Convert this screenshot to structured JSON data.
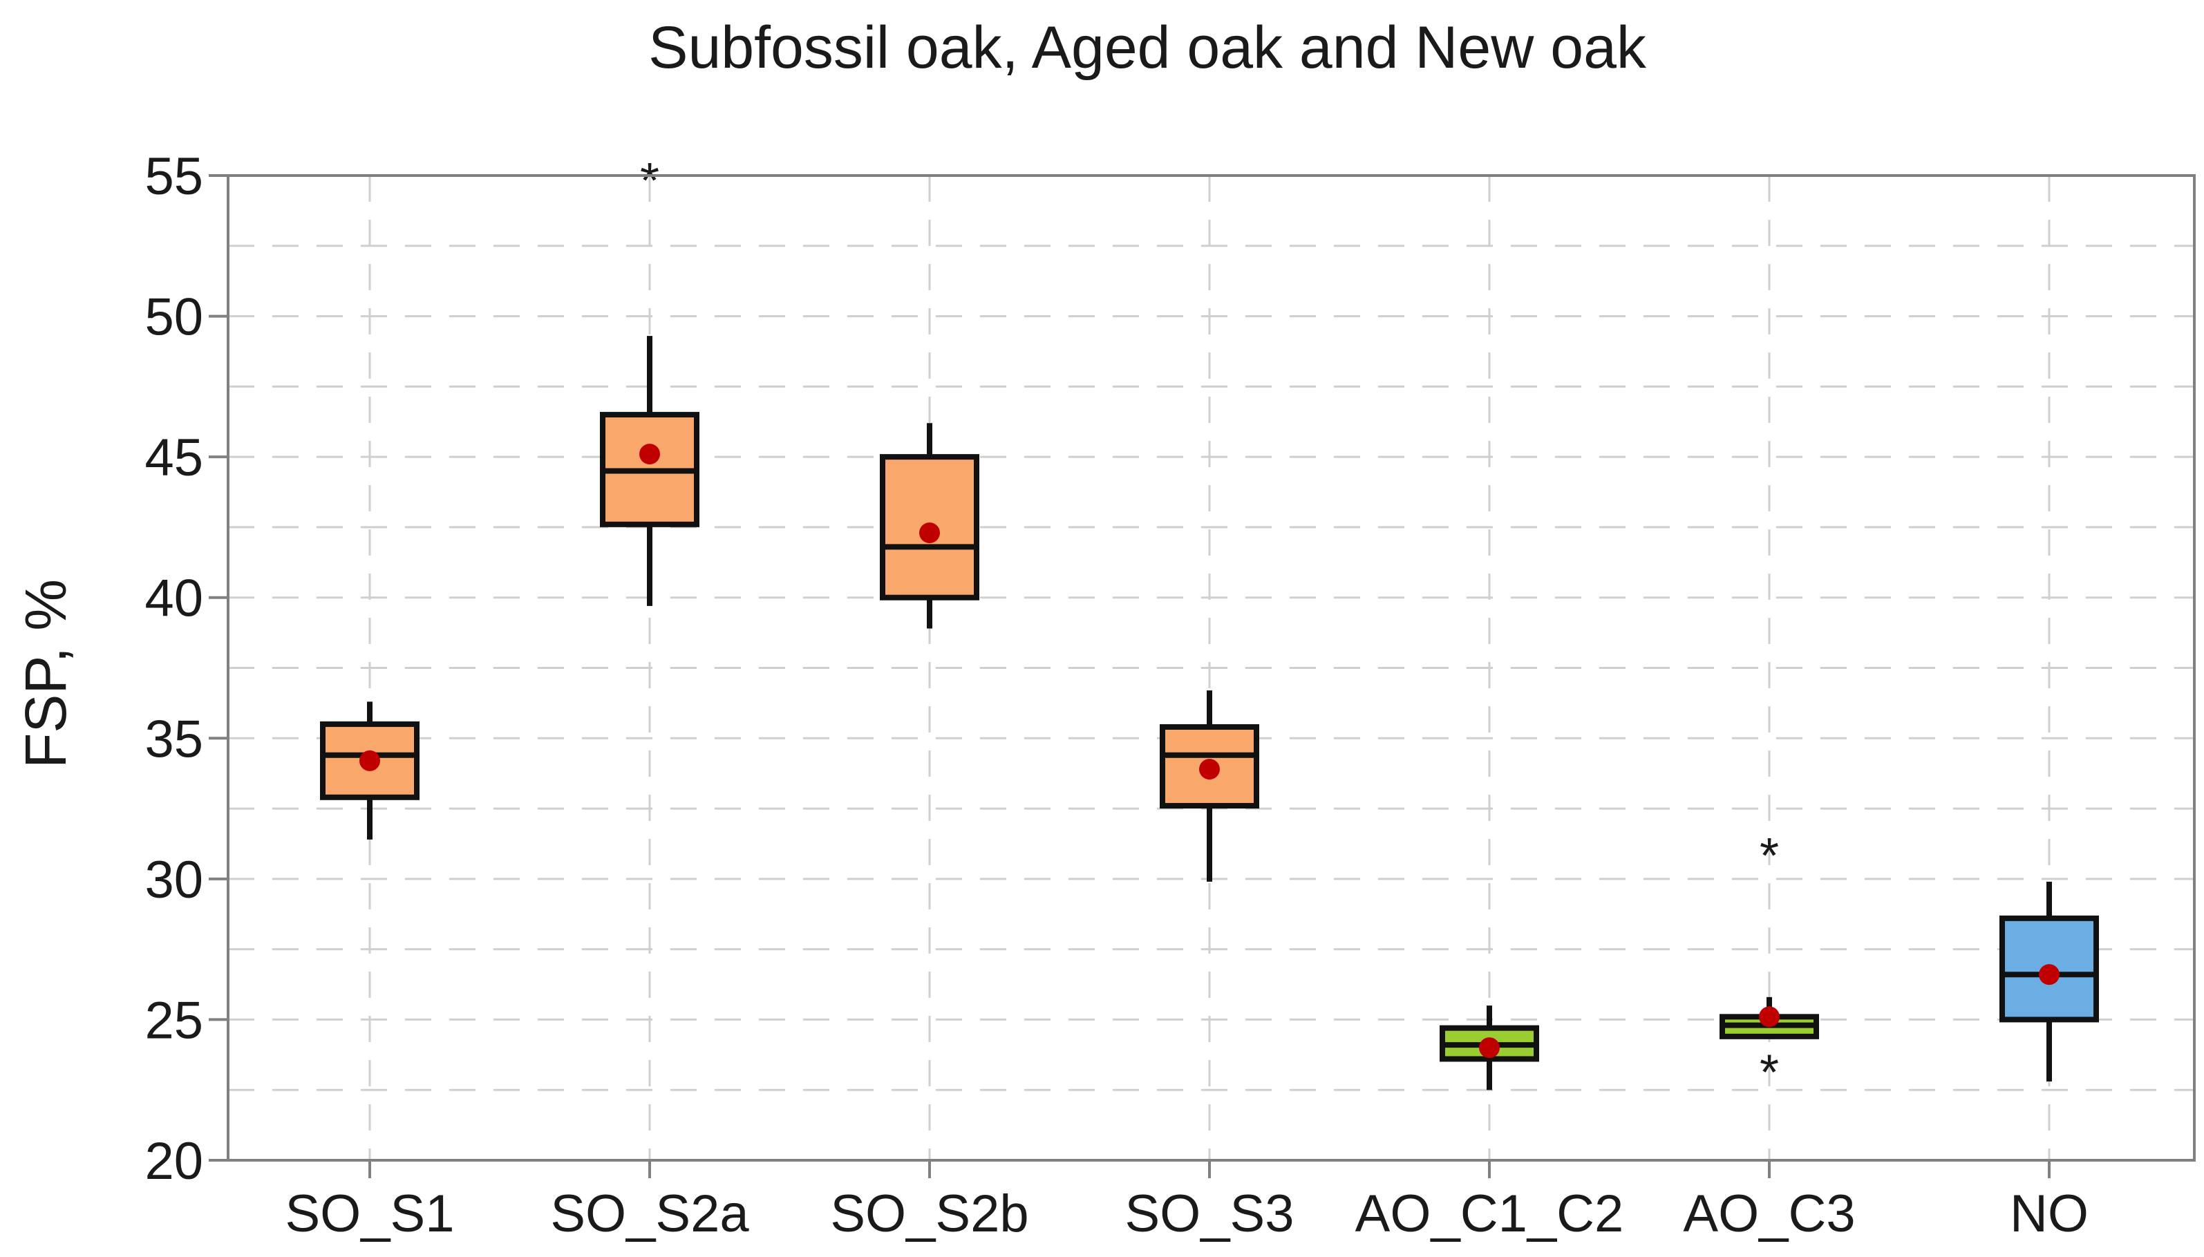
{
  "chart_data": {
    "type": "boxplot",
    "title": "Subfossil oak, Aged oak and New oak",
    "xlabel": "",
    "ylabel": "FSP, %",
    "ylim": [
      20,
      55
    ],
    "yticks": [
      20,
      25,
      30,
      35,
      40,
      45,
      50,
      55
    ],
    "yminor_step": 2.5,
    "grid": true,
    "categories": [
      "SO_S1",
      "SO_S2a",
      "SO_S2b",
      "SO_S3",
      "AO_C1_C2",
      "AO_C3",
      "NO"
    ],
    "boxes": [
      {
        "name": "SO_S1",
        "color": "#F9A76A",
        "whisker_low": 31.4,
        "q1": 32.9,
        "median": 34.4,
        "q3": 35.5,
        "whisker_high": 36.3,
        "mean": 34.2,
        "outliers": []
      },
      {
        "name": "SO_S2a",
        "color": "#F9A76A",
        "whisker_low": 39.7,
        "q1": 42.6,
        "median": 44.5,
        "q3": 46.5,
        "whisker_high": 49.3,
        "mean": 45.1,
        "outliers": [
          55.0
        ]
      },
      {
        "name": "SO_S2b",
        "color": "#F9A76A",
        "whisker_low": 38.9,
        "q1": 40.0,
        "median": 41.8,
        "q3": 45.0,
        "whisker_high": 46.2,
        "mean": 42.3,
        "outliers": []
      },
      {
        "name": "SO_S3",
        "color": "#F9A76A",
        "whisker_low": 29.9,
        "q1": 32.6,
        "median": 34.4,
        "q3": 35.4,
        "whisker_high": 36.7,
        "mean": 33.9,
        "outliers": []
      },
      {
        "name": "AO_C1_C2",
        "color": "#9ACD32",
        "whisker_low": 22.5,
        "q1": 23.6,
        "median": 24.1,
        "q3": 24.7,
        "whisker_high": 25.5,
        "mean": 24.0,
        "outliers": []
      },
      {
        "name": "AO_C3",
        "color": "#9ACD32",
        "whisker_low": 24.4,
        "q1": 24.4,
        "median": 24.8,
        "q3": 25.1,
        "whisker_high": 25.8,
        "mean": 25.1,
        "outliers": [
          31.0,
          23.3
        ]
      },
      {
        "name": "NO",
        "color": "#6AAEE3",
        "whisker_low": 22.8,
        "q1": 25.0,
        "median": 26.6,
        "q3": 28.6,
        "whisker_high": 29.9,
        "mean": 26.6,
        "outliers": []
      }
    ],
    "mean_marker_color": "#C00000",
    "outlier_marker": "*"
  }
}
